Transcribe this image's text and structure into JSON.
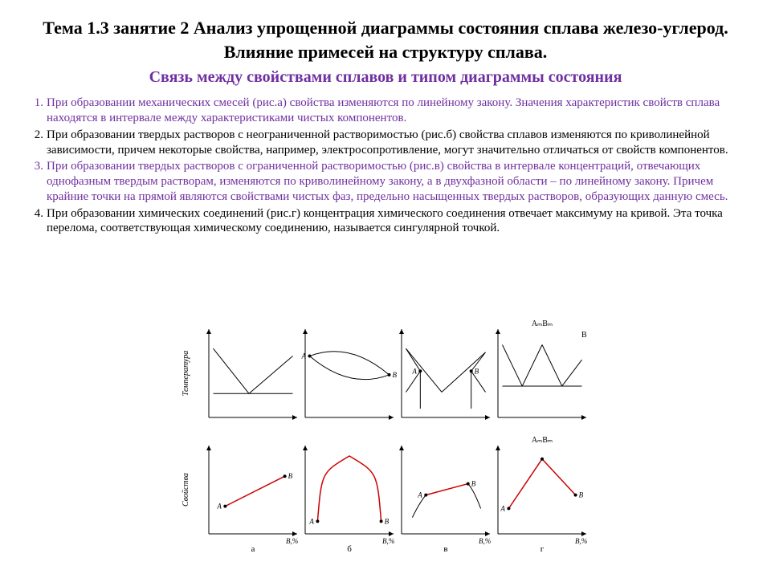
{
  "title": "Тема 1.3 занятие 2 Анализ упрощенной диаграммы состояния сплава железо-углерод. Влияние примесей на структуру сплава.",
  "subtitle": "Связь между свойствами сплавов и типом диаграммы состояния",
  "items": [
    {
      "color": "purple",
      "text": "При образовании механических смесей (рис.а) свойства изменяются по линейному закону. Значения характеристик свойств сплава находятся в интервале между характеристиками чистых компонентов."
    },
    {
      "color": "black",
      "text": "При образовании твердых растворов с неограниченной растворимостью (рис.б) свойства сплавов изменяются по криволинейной зависимости, причем некоторые свойства, например, электросопротивление, могут значительно отличаться от свойств компонентов."
    },
    {
      "color": "purple",
      "text": "При образовании твердых растворов с ограниченной растворимостью (рис.в) свойства в интервале концентраций, отвечающих однофазным твердым растворам, изменяются по криволинейному закону, а в двухфазной области – по линейному закону. Причем крайние точки на прямой являются свойствами чистых фаз, предельно насыщенных твердых растворов, образующих данную смесь."
    },
    {
      "color": "black",
      "text": "При образовании химических соединений (рис.г) концентрация химического соединения отвечает максимуму на кривой. Эта точка перелома, соответствующая химическому соединению, называется сингулярной точкой."
    }
  ],
  "figure": {
    "yAxisTop": "Температура",
    "yAxisBot": "Свойства",
    "xAxis": "B,%",
    "panelLabels": [
      "а",
      "б",
      "в",
      "г"
    ],
    "topLabels": {
      "panel_g": "AₘBₘ",
      "panel_g_right": "B"
    },
    "botLabels": {
      "panel_g": "AₘBₘ"
    },
    "colors": {
      "axis": "#000000",
      "phase": "#000000",
      "property": "#cc0000",
      "bg": "#ffffff"
    },
    "panels": {
      "a_top": {
        "type": "eutectic",
        "lines": [
          [
            0,
            20,
            45,
            80
          ],
          [
            45,
            80,
            100,
            30
          ],
          [
            0,
            80,
            45,
            80
          ],
          [
            45,
            80,
            100,
            80
          ]
        ]
      },
      "b_top": {
        "type": "lens",
        "curves": [
          [
            [
              0,
              30
            ],
            [
              50,
              10
            ],
            [
              100,
              55
            ]
          ],
          [
            [
              0,
              30
            ],
            [
              50,
              75
            ],
            [
              100,
              55
            ]
          ]
        ],
        "ptA": [
          0,
          30
        ],
        "ptB": [
          100,
          55
        ]
      },
      "v_top": {
        "type": "limited",
        "lines": [
          [
            0,
            20,
            45,
            78
          ],
          [
            45,
            78,
            100,
            25
          ],
          [
            0,
            78,
            18,
            50
          ],
          [
            0,
            20,
            18,
            50
          ],
          [
            100,
            78,
            82,
            50
          ],
          [
            100,
            25,
            82,
            50
          ],
          [
            18,
            50,
            18,
            100
          ],
          [
            82,
            50,
            82,
            100
          ]
        ],
        "ptA": [
          18,
          50
        ],
        "ptB": [
          82,
          50
        ]
      },
      "g_top": {
        "type": "compound",
        "lines": [
          [
            0,
            15,
            25,
            70
          ],
          [
            25,
            70,
            50,
            15
          ],
          [
            50,
            15,
            75,
            70
          ],
          [
            75,
            70,
            100,
            35
          ],
          [
            0,
            70,
            50,
            70
          ],
          [
            50,
            70,
            100,
            70
          ]
        ]
      },
      "a_bot": {
        "type": "linear",
        "red": [
          [
            15,
            75,
            90,
            35
          ]
        ],
        "ptA": [
          15,
          75
        ],
        "ptB": [
          90,
          35
        ]
      },
      "b_bot": {
        "type": "arch",
        "red_curve": [
          [
            10,
            95
          ],
          [
            15,
            30
          ],
          [
            50,
            8
          ],
          [
            85,
            30
          ],
          [
            90,
            95
          ]
        ],
        "ptA": [
          10,
          95
        ],
        "ptB": [
          90,
          95
        ]
      },
      "v_bot": {
        "type": "mixed",
        "red": [
          [
            25,
            60,
            78,
            45
          ]
        ],
        "black_curve1": [
          [
            8,
            90
          ],
          [
            16,
            72
          ],
          [
            25,
            60
          ]
        ],
        "black_curve2": [
          [
            78,
            45
          ],
          [
            86,
            55
          ],
          [
            94,
            78
          ]
        ],
        "ptA": [
          25,
          60
        ],
        "ptB": [
          78,
          45
        ]
      },
      "g_bot": {
        "type": "singular",
        "red": [
          [
            8,
            78,
            50,
            12
          ],
          [
            50,
            12,
            92,
            60
          ]
        ],
        "ptA": [
          8,
          78
        ],
        "ptTop": [
          50,
          12
        ],
        "ptB": [
          92,
          60
        ]
      }
    }
  }
}
